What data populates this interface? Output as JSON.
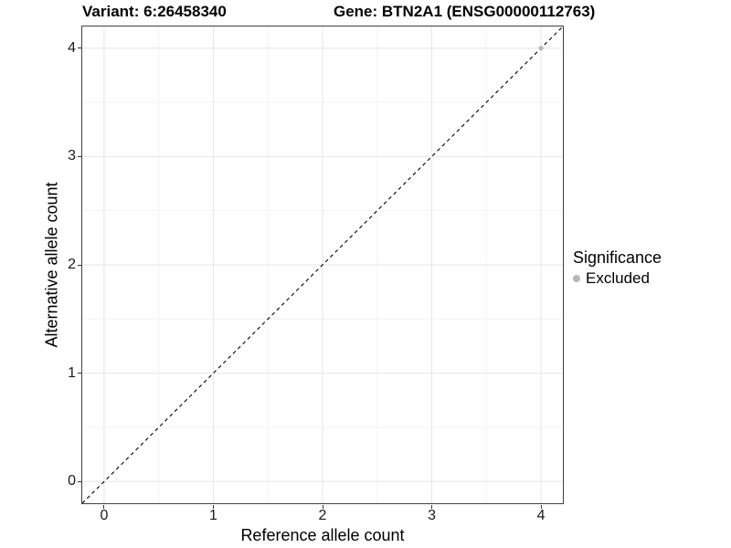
{
  "titles": {
    "variant": "Variant: 6:26458340",
    "gene": "Gene: BTN2A1 (ENSG00000112763)"
  },
  "axes": {
    "x_label": "Reference allele count",
    "y_label": "Alternative allele count"
  },
  "legend": {
    "title": "Significance",
    "items": [
      {
        "label": "Excluded",
        "color": "#b8b8b8"
      }
    ]
  },
  "colors": {
    "grid_major": "#e6e6e6",
    "grid_minor": "#f3f3f3",
    "panel_border": "#404040",
    "reference_line": "#000000",
    "point_excluded": "#b8b8b8"
  },
  "chart_data": {
    "type": "scatter",
    "title": "Variant: 6:26458340    Gene: BTN2A1 (ENSG00000112763)",
    "xlabel": "Reference allele count",
    "ylabel": "Alternative allele count",
    "xlim": [
      -0.2,
      4.2
    ],
    "ylim": [
      -0.2,
      4.2
    ],
    "x_ticks": [
      0,
      1,
      2,
      3,
      4
    ],
    "y_ticks": [
      0,
      1,
      2,
      3,
      4
    ],
    "x_minor_ticks": [
      0.5,
      1.5,
      2.5,
      3.5
    ],
    "y_minor_ticks": [
      0.5,
      1.5,
      2.5,
      3.5
    ],
    "grid": true,
    "legend_position": "right",
    "legend_title": "Significance",
    "series": [
      {
        "name": "Excluded",
        "color": "#b8b8b8",
        "points": [
          {
            "x": 4,
            "y": 4
          }
        ]
      }
    ],
    "reference_line": {
      "type": "abline",
      "slope": 1,
      "intercept": 0,
      "style": "dashed",
      "color": "#000000"
    }
  }
}
